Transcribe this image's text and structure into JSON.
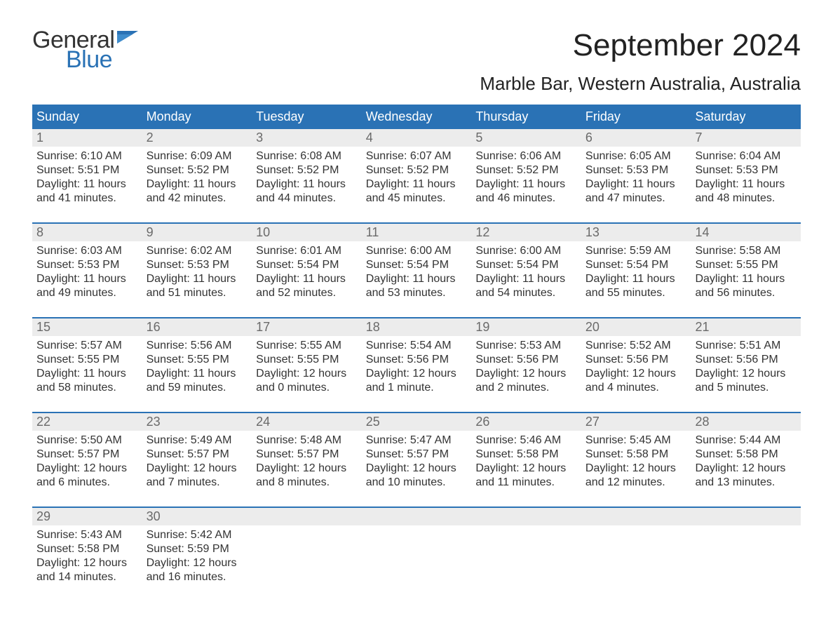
{
  "colors": {
    "brand_blue": "#2a72b5",
    "header_bg": "#2a72b5",
    "header_text": "#ffffff",
    "daynum_bg": "#ececec",
    "daynum_text": "#6a6a6a",
    "body_text": "#333333",
    "page_bg": "#ffffff",
    "rule": "#2a72b5"
  },
  "typography": {
    "title_month_pt": 44,
    "title_loc_pt": 26,
    "dayheader_pt": 18,
    "daynum_pt": 18,
    "cell_pt": 16,
    "logo_pt": 34
  },
  "logo": {
    "word1": "General",
    "word2": "Blue"
  },
  "title": {
    "month": "September 2024",
    "location": "Marble Bar, Western Australia, Australia"
  },
  "day_names": [
    "Sunday",
    "Monday",
    "Tuesday",
    "Wednesday",
    "Thursday",
    "Friday",
    "Saturday"
  ],
  "weeks": [
    {
      "nums": [
        "1",
        "2",
        "3",
        "4",
        "5",
        "6",
        "7"
      ],
      "cells": [
        {
          "sunrise": "Sunrise: 6:10 AM",
          "sunset": "Sunset: 5:51 PM",
          "dl1": "Daylight: 11 hours",
          "dl2": "and 41 minutes."
        },
        {
          "sunrise": "Sunrise: 6:09 AM",
          "sunset": "Sunset: 5:52 PM",
          "dl1": "Daylight: 11 hours",
          "dl2": "and 42 minutes."
        },
        {
          "sunrise": "Sunrise: 6:08 AM",
          "sunset": "Sunset: 5:52 PM",
          "dl1": "Daylight: 11 hours",
          "dl2": "and 44 minutes."
        },
        {
          "sunrise": "Sunrise: 6:07 AM",
          "sunset": "Sunset: 5:52 PM",
          "dl1": "Daylight: 11 hours",
          "dl2": "and 45 minutes."
        },
        {
          "sunrise": "Sunrise: 6:06 AM",
          "sunset": "Sunset: 5:52 PM",
          "dl1": "Daylight: 11 hours",
          "dl2": "and 46 minutes."
        },
        {
          "sunrise": "Sunrise: 6:05 AM",
          "sunset": "Sunset: 5:53 PM",
          "dl1": "Daylight: 11 hours",
          "dl2": "and 47 minutes."
        },
        {
          "sunrise": "Sunrise: 6:04 AM",
          "sunset": "Sunset: 5:53 PM",
          "dl1": "Daylight: 11 hours",
          "dl2": "and 48 minutes."
        }
      ]
    },
    {
      "nums": [
        "8",
        "9",
        "10",
        "11",
        "12",
        "13",
        "14"
      ],
      "cells": [
        {
          "sunrise": "Sunrise: 6:03 AM",
          "sunset": "Sunset: 5:53 PM",
          "dl1": "Daylight: 11 hours",
          "dl2": "and 49 minutes."
        },
        {
          "sunrise": "Sunrise: 6:02 AM",
          "sunset": "Sunset: 5:53 PM",
          "dl1": "Daylight: 11 hours",
          "dl2": "and 51 minutes."
        },
        {
          "sunrise": "Sunrise: 6:01 AM",
          "sunset": "Sunset: 5:54 PM",
          "dl1": "Daylight: 11 hours",
          "dl2": "and 52 minutes."
        },
        {
          "sunrise": "Sunrise: 6:00 AM",
          "sunset": "Sunset: 5:54 PM",
          "dl1": "Daylight: 11 hours",
          "dl2": "and 53 minutes."
        },
        {
          "sunrise": "Sunrise: 6:00 AM",
          "sunset": "Sunset: 5:54 PM",
          "dl1": "Daylight: 11 hours",
          "dl2": "and 54 minutes."
        },
        {
          "sunrise": "Sunrise: 5:59 AM",
          "sunset": "Sunset: 5:54 PM",
          "dl1": "Daylight: 11 hours",
          "dl2": "and 55 minutes."
        },
        {
          "sunrise": "Sunrise: 5:58 AM",
          "sunset": "Sunset: 5:55 PM",
          "dl1": "Daylight: 11 hours",
          "dl2": "and 56 minutes."
        }
      ]
    },
    {
      "nums": [
        "15",
        "16",
        "17",
        "18",
        "19",
        "20",
        "21"
      ],
      "cells": [
        {
          "sunrise": "Sunrise: 5:57 AM",
          "sunset": "Sunset: 5:55 PM",
          "dl1": "Daylight: 11 hours",
          "dl2": "and 58 minutes."
        },
        {
          "sunrise": "Sunrise: 5:56 AM",
          "sunset": "Sunset: 5:55 PM",
          "dl1": "Daylight: 11 hours",
          "dl2": "and 59 minutes."
        },
        {
          "sunrise": "Sunrise: 5:55 AM",
          "sunset": "Sunset: 5:55 PM",
          "dl1": "Daylight: 12 hours",
          "dl2": "and 0 minutes."
        },
        {
          "sunrise": "Sunrise: 5:54 AM",
          "sunset": "Sunset: 5:56 PM",
          "dl1": "Daylight: 12 hours",
          "dl2": "and 1 minute."
        },
        {
          "sunrise": "Sunrise: 5:53 AM",
          "sunset": "Sunset: 5:56 PM",
          "dl1": "Daylight: 12 hours",
          "dl2": "and 2 minutes."
        },
        {
          "sunrise": "Sunrise: 5:52 AM",
          "sunset": "Sunset: 5:56 PM",
          "dl1": "Daylight: 12 hours",
          "dl2": "and 4 minutes."
        },
        {
          "sunrise": "Sunrise: 5:51 AM",
          "sunset": "Sunset: 5:56 PM",
          "dl1": "Daylight: 12 hours",
          "dl2": "and 5 minutes."
        }
      ]
    },
    {
      "nums": [
        "22",
        "23",
        "24",
        "25",
        "26",
        "27",
        "28"
      ],
      "cells": [
        {
          "sunrise": "Sunrise: 5:50 AM",
          "sunset": "Sunset: 5:57 PM",
          "dl1": "Daylight: 12 hours",
          "dl2": "and 6 minutes."
        },
        {
          "sunrise": "Sunrise: 5:49 AM",
          "sunset": "Sunset: 5:57 PM",
          "dl1": "Daylight: 12 hours",
          "dl2": "and 7 minutes."
        },
        {
          "sunrise": "Sunrise: 5:48 AM",
          "sunset": "Sunset: 5:57 PM",
          "dl1": "Daylight: 12 hours",
          "dl2": "and 8 minutes."
        },
        {
          "sunrise": "Sunrise: 5:47 AM",
          "sunset": "Sunset: 5:57 PM",
          "dl1": "Daylight: 12 hours",
          "dl2": "and 10 minutes."
        },
        {
          "sunrise": "Sunrise: 5:46 AM",
          "sunset": "Sunset: 5:58 PM",
          "dl1": "Daylight: 12 hours",
          "dl2": "and 11 minutes."
        },
        {
          "sunrise": "Sunrise: 5:45 AM",
          "sunset": "Sunset: 5:58 PM",
          "dl1": "Daylight: 12 hours",
          "dl2": "and 12 minutes."
        },
        {
          "sunrise": "Sunrise: 5:44 AM",
          "sunset": "Sunset: 5:58 PM",
          "dl1": "Daylight: 12 hours",
          "dl2": "and 13 minutes."
        }
      ]
    },
    {
      "nums": [
        "29",
        "30",
        "",
        "",
        "",
        "",
        ""
      ],
      "cells": [
        {
          "sunrise": "Sunrise: 5:43 AM",
          "sunset": "Sunset: 5:58 PM",
          "dl1": "Daylight: 12 hours",
          "dl2": "and 14 minutes."
        },
        {
          "sunrise": "Sunrise: 5:42 AM",
          "sunset": "Sunset: 5:59 PM",
          "dl1": "Daylight: 12 hours",
          "dl2": "and 16 minutes."
        },
        null,
        null,
        null,
        null,
        null
      ]
    }
  ]
}
